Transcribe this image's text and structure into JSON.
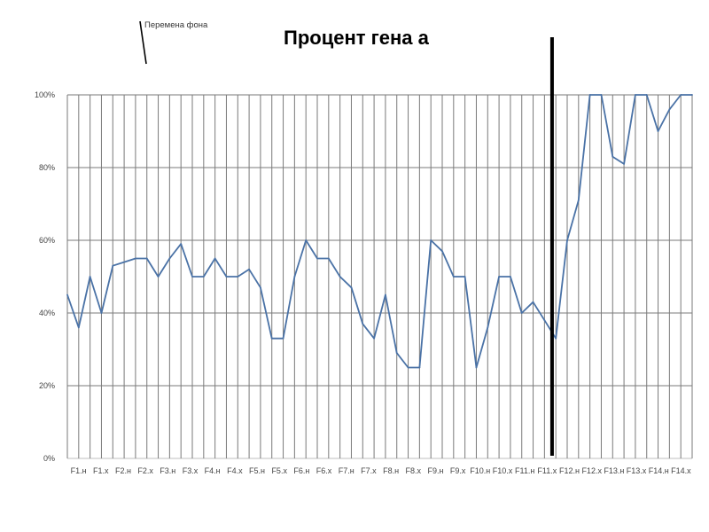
{
  "chart_data": {
    "type": "line",
    "title": "Процент гена а",
    "annotation": "Перемена фона",
    "ylim": [
      0,
      100
    ],
    "ytick_labels": [
      "0%",
      "20%",
      "40%",
      "60%",
      "80%",
      "100%"
    ],
    "grid": "horizontal lines at each y tick; vertical line at each category",
    "x_labels_shown": [
      "F1.н",
      "F1.х",
      "F2.н",
      "F2.х",
      "F3.н",
      "F3.х",
      "F4.н",
      "F4.х",
      "F5.н",
      "F5.х",
      "F6.н",
      "F6.х",
      "F7.н",
      "F7.х",
      "F8.н",
      "F8.х",
      "F9.н",
      "F9.х",
      "F10.н",
      "F10.х",
      "F11.н",
      "F11.х",
      "F12.н",
      "F12.х",
      "F13.н",
      "F13.х",
      "F14.н",
      "F14.х"
    ],
    "series": [
      {
        "color": "#4a72a6",
        "values": [
          45,
          36,
          50,
          40,
          53,
          54,
          55,
          55,
          50,
          55,
          59,
          50,
          50,
          55,
          50,
          50,
          52,
          47,
          33,
          33,
          50,
          60,
          55,
          55,
          50,
          47,
          37,
          33,
          45,
          29,
          25,
          25,
          60,
          57,
          50,
          50,
          25,
          36,
          50,
          50,
          40,
          43,
          38,
          33,
          60,
          71,
          100,
          100,
          83,
          81,
          100,
          100,
          90,
          96,
          100,
          100
        ]
      }
    ],
    "marker_line": {
      "after_category": "F11.х",
      "color": "#000000"
    }
  }
}
